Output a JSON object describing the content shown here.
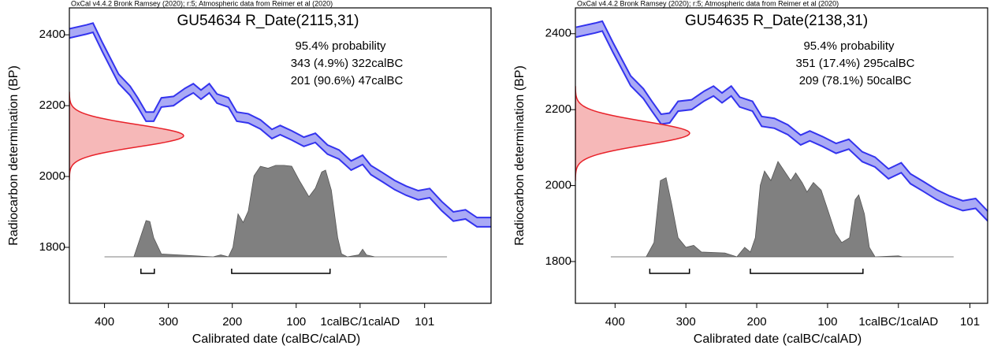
{
  "chart_data": [
    {
      "type": "calibration",
      "header": "OxCal v4.4.2 Bronk Ramsey (2020); r:5; Atmospheric data from Reimer et al (2020)",
      "title": "GU54634 R_Date(2115,31)",
      "probability_label": "95.4% probability",
      "ranges": [
        {
          "label": "343 (4.9%) 322calBC",
          "start": -343,
          "end": -322
        },
        {
          "label": "201 (90.6%) 47calBC",
          "start": -201,
          "end": -47
        }
      ],
      "xlabel": "Calibrated date (calBC/calAD)",
      "ylabel": "Radiocarbon determination (BP)",
      "xlim": [
        -455,
        205
      ],
      "ylim": [
        2476,
        1642
      ],
      "xticks": [
        {
          "value": -400,
          "label": "400"
        },
        {
          "value": -300,
          "label": "300"
        },
        {
          "value": -200,
          "label": "200"
        },
        {
          "value": -100,
          "label": "100"
        },
        {
          "value": 0,
          "label": "1calBC/1calAD"
        },
        101
      ],
      "yticks": [
        1800,
        2000,
        2200,
        2400
      ],
      "curve": {
        "color": "#3333ee",
        "error": 13,
        "x": [
          -455,
          -428,
          -418,
          -403,
          -378,
          -360,
          -348,
          -335,
          -323,
          -311,
          -292,
          -274,
          -261,
          -249,
          -236,
          -224,
          -206,
          -193,
          -175,
          -156,
          -138,
          -125,
          -107,
          -88,
          -70,
          -51,
          -33,
          -14,
          4,
          17,
          35,
          54,
          72,
          91,
          109,
          128,
          146,
          165,
          183,
          205
        ],
        "values": [
          2404,
          2415,
          2420,
          2364,
          2276,
          2242,
          2209,
          2169,
          2169,
          2209,
          2213,
          2236,
          2249,
          2231,
          2249,
          2220,
          2209,
          2169,
          2164,
          2147,
          2120,
          2131,
          2116,
          2098,
          2109,
          2076,
          2062,
          2031,
          2047,
          2018,
          1998,
          1976,
          1960,
          1947,
          1953,
          1916,
          1887,
          1893,
          1871,
          1871
        ]
      },
      "date": {
        "color": "#e8222a",
        "mean": 2115,
        "sigma": 31
      },
      "posterior": {
        "color": "#808080",
        "x": [
          -400,
          -354,
          -344,
          -335,
          -329,
          -323,
          -311,
          -286,
          -230,
          -218,
          -206,
          -199,
          -191,
          -183,
          -175,
          -166,
          -156,
          -144,
          -132,
          -119,
          -107,
          -95,
          -80,
          -70,
          -60,
          -54,
          -45,
          -35,
          -29,
          -20,
          -2,
          4,
          10,
          23,
          136
        ],
        "values": [
          0,
          0,
          20,
          38,
          37,
          20,
          3,
          2,
          0,
          2,
          0,
          10,
          45,
          36,
          48,
          85,
          95,
          93,
          96,
          96,
          95,
          80,
          63,
          72,
          89,
          91,
          70,
          20,
          3,
          0,
          2,
          8,
          2,
          0,
          0
        ]
      }
    },
    {
      "type": "calibration",
      "header": "OxCal v4.4.2 Bronk Ramsey (2020); r:5; Atmospheric data from Reimer et al (2020)",
      "title": "GU54635 R_Date(2138,31)",
      "probability_label": "95.4% probability",
      "ranges": [
        {
          "label": "351 (17.4%) 295calBC",
          "start": -351,
          "end": -295
        },
        {
          "label": "209 (78.1%) 50calBC",
          "start": -209,
          "end": -50
        }
      ],
      "xlabel": "Calibrated date (calBC/calAD)",
      "ylabel": "Radiocarbon determination (BP)",
      "xlim": [
        -456,
        126
      ],
      "ylim": [
        2468,
        1690
      ],
      "xticks": [
        {
          "value": -400,
          "label": "400"
        },
        {
          "value": -300,
          "label": "300"
        },
        {
          "value": -200,
          "label": "200"
        },
        {
          "value": -100,
          "label": "100"
        },
        {
          "value": 0,
          "label": "1calBC/1calAD"
        },
        101
      ],
      "yticks": [
        1800,
        2000,
        2200,
        2400
      ],
      "curve": {
        "color": "#3333ee",
        "error": 13,
        "x": [
          -455,
          -428,
          -418,
          -403,
          -378,
          -360,
          -348,
          -335,
          -323,
          -311,
          -292,
          -274,
          -261,
          -249,
          -236,
          -224,
          -206,
          -193,
          -175,
          -156,
          -138,
          -125,
          -107,
          -88,
          -70,
          -51,
          -33,
          -14,
          4,
          17,
          35,
          54,
          72,
          91,
          109,
          128
        ],
        "values": [
          2404,
          2415,
          2420,
          2364,
          2276,
          2242,
          2209,
          2175,
          2178,
          2209,
          2213,
          2236,
          2249,
          2231,
          2249,
          2220,
          2209,
          2169,
          2164,
          2147,
          2120,
          2131,
          2116,
          2098,
          2109,
          2076,
          2062,
          2031,
          2047,
          2018,
          1998,
          1976,
          1960,
          1947,
          1953,
          1916
        ]
      },
      "date": {
        "color": "#e8222a",
        "mean": 2138,
        "sigma": 31
      },
      "posterior": {
        "color": "#808080",
        "x": [
          -406,
          -356,
          -345,
          -336,
          -328,
          -320,
          -311,
          -300,
          -289,
          -278,
          -245,
          -228,
          -217,
          -209,
          -202,
          -195,
          -189,
          -180,
          -170,
          -161,
          -152,
          -145,
          -136,
          -129,
          -120,
          -109,
          -100,
          -89,
          -80,
          -69,
          -61,
          -56,
          -48,
          -41,
          -33,
          0,
          6,
          78
        ],
        "values": [
          0,
          0,
          15,
          80,
          83,
          55,
          20,
          10,
          12,
          5,
          4,
          0,
          10,
          5,
          20,
          75,
          90,
          80,
          100,
          90,
          80,
          88,
          78,
          68,
          78,
          70,
          50,
          25,
          15,
          20,
          60,
          65,
          45,
          10,
          0,
          1,
          0,
          0
        ]
      }
    }
  ]
}
